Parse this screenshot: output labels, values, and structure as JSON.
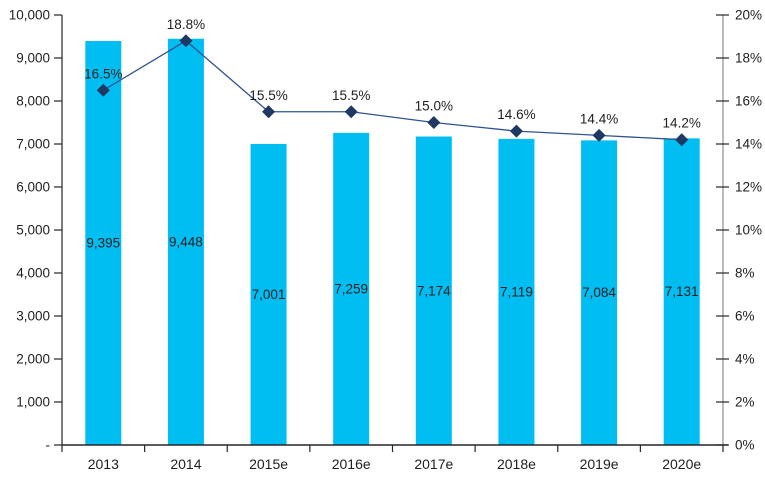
{
  "chart_data": {
    "type": "bar",
    "subtype": "combo-bar-line-dual-axis",
    "title": "",
    "xlabel": "",
    "ylabel": "",
    "grid": false,
    "legend": false,
    "categories": [
      "2013",
      "2014",
      "2015e",
      "2016e",
      "2017e",
      "2018e",
      "2019e",
      "2020e"
    ],
    "series": [
      {
        "name": "bar-values",
        "type": "bar",
        "axis": "left",
        "values": [
          9395,
          9448,
          7001,
          7259,
          7174,
          7119,
          7084,
          7131
        ],
        "data_labels": [
          "9,395",
          "9,448",
          "7,001",
          "7,259",
          "7,174",
          "7,119",
          "7,084",
          "7,131"
        ]
      },
      {
        "name": "percent-line",
        "type": "line",
        "axis": "right",
        "values": [
          16.5,
          18.8,
          15.5,
          15.5,
          15.0,
          14.6,
          14.4,
          14.2
        ],
        "data_labels": [
          "16.5%",
          "18.8%",
          "15.5%",
          "15.5%",
          "15.0%",
          "14.6%",
          "14.4%",
          "14.2%"
        ]
      }
    ],
    "left_axis": {
      "min": 0,
      "max": 10000,
      "step": 1000,
      "tick_labels": [
        "-",
        "1,000",
        "2,000",
        "3,000",
        "4,000",
        "5,000",
        "6,000",
        "7,000",
        "8,000",
        "9,000",
        "10,000"
      ]
    },
    "right_axis": {
      "min": 0,
      "max": 20,
      "step": 2,
      "tick_labels": [
        "0%",
        "2%",
        "4%",
        "6%",
        "8%",
        "10%",
        "12%",
        "14%",
        "16%",
        "18%",
        "20%"
      ]
    },
    "colors": {
      "bar_fill": "#00BDF2",
      "line_stroke": "#31538F",
      "marker_fill": "#1F3864",
      "label_text": "#1F1F1F",
      "axis_line": "#262626",
      "right_axis_line": "#8C8C8C"
    }
  }
}
